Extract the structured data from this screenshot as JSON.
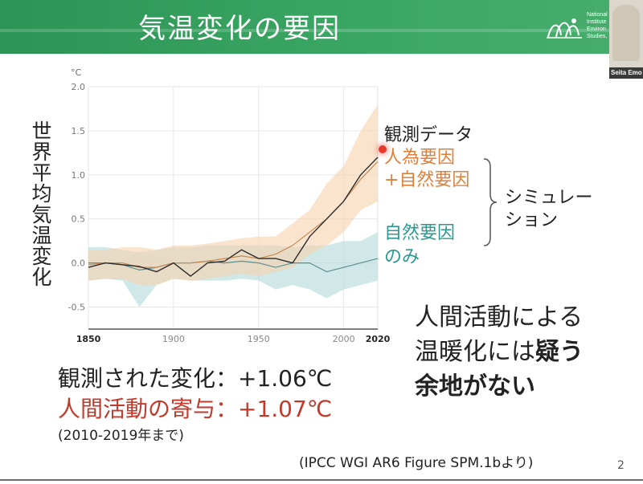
{
  "header": {
    "title": "気温変化の要因",
    "logo_text_lines": [
      "National",
      "Institute",
      "Environ",
      "Studies,"
    ],
    "accent_color": "#39a462"
  },
  "video": {
    "participant_name": "Seita Emo"
  },
  "chart_data": {
    "type": "line",
    "ylabel": "世界平均気温変化",
    "y_unit": "°C",
    "ylim": [
      -0.75,
      2.0
    ],
    "yticks": [
      "2.0",
      "1.5",
      "1.0",
      "0.5",
      "0.0",
      "-0.5"
    ],
    "ytick_values": [
      2.0,
      1.5,
      1.0,
      0.5,
      0.0,
      -0.5
    ],
    "xlim": [
      1850,
      2020
    ],
    "xticks": [
      "1850",
      "1900",
      "1950",
      "2000",
      "2020"
    ],
    "xtick_values": [
      1850,
      1900,
      1950,
      2000,
      2020
    ],
    "grid": true,
    "x": [
      1850,
      1860,
      1870,
      1880,
      1890,
      1900,
      1910,
      1920,
      1930,
      1940,
      1950,
      1960,
      1970,
      1980,
      1990,
      2000,
      2010,
      2020
    ],
    "series": [
      {
        "name": "観測データ",
        "color": "#2b2b2b",
        "values": [
          -0.05,
          0.0,
          -0.02,
          -0.04,
          -0.1,
          0.0,
          -0.15,
          0.0,
          0.02,
          0.15,
          0.05,
          0.05,
          0.0,
          0.3,
          0.5,
          0.7,
          1.0,
          1.2
        ]
      },
      {
        "name": "人為要因+自然要因",
        "color": "#c98a55",
        "band_color": "#f6d2ad",
        "values": [
          -0.02,
          0.0,
          0.0,
          -0.05,
          -0.05,
          0.0,
          0.0,
          0.02,
          0.05,
          0.08,
          0.05,
          0.1,
          0.2,
          0.35,
          0.5,
          0.7,
          0.95,
          1.15
        ],
        "lower": [
          -0.2,
          -0.18,
          -0.18,
          -0.25,
          -0.25,
          -0.18,
          -0.2,
          -0.18,
          -0.15,
          -0.12,
          -0.15,
          -0.1,
          -0.05,
          0.1,
          0.2,
          0.35,
          0.6,
          0.7
        ],
        "upper": [
          0.15,
          0.15,
          0.18,
          0.18,
          0.15,
          0.2,
          0.2,
          0.22,
          0.25,
          0.28,
          0.3,
          0.3,
          0.45,
          0.6,
          0.9,
          1.1,
          1.5,
          1.8
        ]
      },
      {
        "name": "自然要因のみ",
        "color": "#5b8f8f",
        "band_color": "#b3d8d8",
        "values": [
          0.0,
          0.0,
          -0.02,
          -0.08,
          -0.05,
          0.0,
          0.0,
          0.02,
          0.0,
          0.02,
          0.0,
          -0.05,
          0.0,
          0.0,
          -0.1,
          -0.05,
          0.0,
          0.05
        ],
        "lower": [
          -0.2,
          -0.18,
          -0.2,
          -0.5,
          -0.25,
          -0.18,
          -0.2,
          -0.2,
          -0.2,
          -0.18,
          -0.2,
          -0.3,
          -0.25,
          -0.3,
          -0.4,
          -0.3,
          -0.25,
          -0.2
        ],
        "upper": [
          0.18,
          0.18,
          0.15,
          0.12,
          0.15,
          0.18,
          0.18,
          0.2,
          0.2,
          0.2,
          0.2,
          0.2,
          0.18,
          0.2,
          0.2,
          0.25,
          0.25,
          0.35
        ]
      }
    ]
  },
  "legend": {
    "observed": "観測データ",
    "human_line1": "人為要因",
    "human_line2": "+自然要因",
    "natural_line1": "自然要因",
    "natural_line2": "のみ",
    "simulation_line1": "シミュレー",
    "simulation_line2": "ション",
    "observed_color": "#222222",
    "human_color": "#e07f3a",
    "natural_color": "#2a9a90"
  },
  "conclusion": {
    "line1": "人間活動による",
    "line2_normal": "温暖化には",
    "line2_bold": "疑う",
    "line3": "余地がない"
  },
  "stats": {
    "observed_change": "観測された変化：+1.06℃",
    "human_contribution": "人間活動の寄与：+1.07℃",
    "period": "(2010-2019年まで)",
    "highlight_color": "#c23a2a"
  },
  "source": "(IPCC WGI AR6 Figure SPM.1bより)",
  "page_number": "2"
}
